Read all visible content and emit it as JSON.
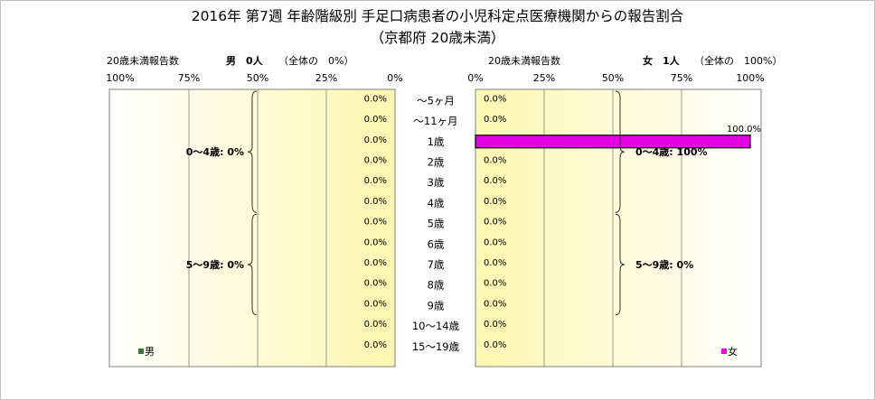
{
  "chart_data": {
    "type": "bar",
    "title": "2016年 第7週 年齢階級別 手足口病患者の小児科定点医療機関からの報告割合",
    "subtitle": "（京都府 20歳未満）",
    "categories": [
      "～5ヶ月",
      "～11ヶ月",
      "1歳",
      "2歳",
      "3歳",
      "4歳",
      "5歳",
      "6歳",
      "7歳",
      "8歳",
      "9歳",
      "10～14歳",
      "15～19歳"
    ],
    "ticks": [
      "0%",
      "25%",
      "50%",
      "75%",
      "100%"
    ],
    "xlim": [
      0,
      100
    ],
    "unit": "%",
    "series": [
      {
        "name": "男",
        "header_label": "20歳未満報告数",
        "header_count": "男　0人",
        "header_share": "（全体の　0%）",
        "color": "#2e7d32",
        "values": [
          0,
          0,
          0,
          0,
          0,
          0,
          0,
          0,
          0,
          0,
          0,
          0,
          0
        ],
        "value_labels": [
          "0.0%",
          "0.0%",
          "0.0%",
          "0.0%",
          "0.0%",
          "0.0%",
          "0.0%",
          "0.0%",
          "0.0%",
          "0.0%",
          "0.0%",
          "0.0%",
          "0.0%"
        ],
        "groups": [
          {
            "label": "0～4歳: 0%",
            "from": 0,
            "to": 5
          },
          {
            "label": "5～9歳: 0%",
            "from": 6,
            "to": 10
          }
        ]
      },
      {
        "name": "女",
        "header_label": "20歳未満報告数",
        "header_count": "女　1人",
        "header_share": "（全体の　100%）",
        "color": "#e600e6",
        "values": [
          0,
          0,
          100,
          0,
          0,
          0,
          0,
          0,
          0,
          0,
          0,
          0,
          0
        ],
        "value_labels": [
          "0.0%",
          "0.0%",
          "100.0%",
          "0.0%",
          "0.0%",
          "0.0%",
          "0.0%",
          "0.0%",
          "0.0%",
          "0.0%",
          "0.0%",
          "0.0%",
          "0.0%"
        ],
        "groups": [
          {
            "label": "0～4歳: 100%",
            "from": 0,
            "to": 5
          },
          {
            "label": "5～9歳: 0%",
            "from": 6,
            "to": 10
          }
        ]
      }
    ],
    "grid": true,
    "legend": "bottom"
  }
}
